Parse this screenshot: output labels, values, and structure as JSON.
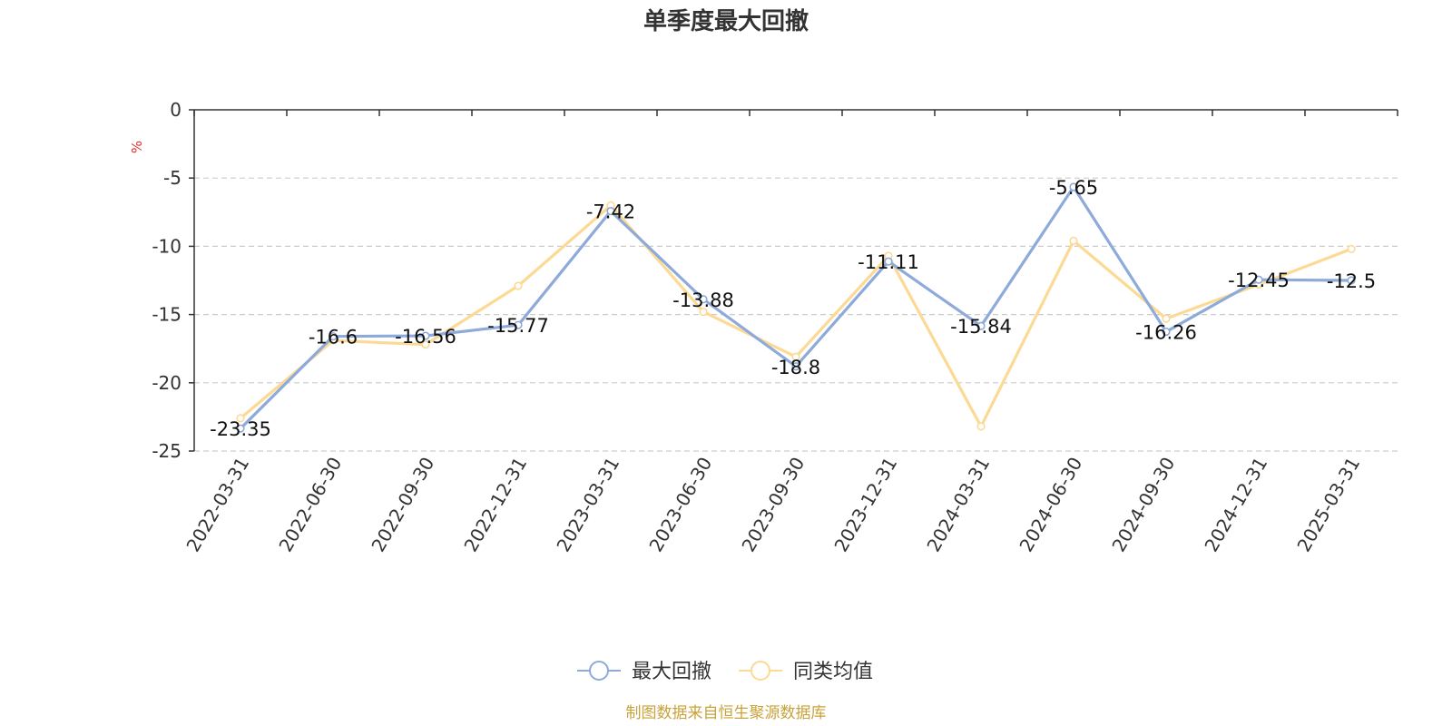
{
  "chart_data": {
    "type": "line",
    "title": "单季度最大回撤",
    "ylabel": "%",
    "xlabel": "",
    "categories": [
      "2022-03-31",
      "2022-06-30",
      "2022-09-30",
      "2022-12-31",
      "2023-03-31",
      "2023-06-30",
      "2023-09-30",
      "2023-12-31",
      "2024-03-31",
      "2024-06-30",
      "2024-09-30",
      "2024-12-31",
      "2025-03-31"
    ],
    "ylim": [
      -25,
      0
    ],
    "yticks": [
      0,
      -5,
      -10,
      -15,
      -20,
      -25
    ],
    "grid": true,
    "legend_position": "bottom",
    "series": [
      {
        "name": "最大回撤",
        "color": "#8eaadb",
        "values": [
          -23.35,
          -16.6,
          -16.56,
          -15.77,
          -7.42,
          -13.88,
          -18.8,
          -11.11,
          -15.84,
          -5.65,
          -16.26,
          -12.45,
          -12.5
        ],
        "labels": [
          "-23.35",
          "-16.6",
          "-16.56",
          "-15.77",
          "-7.42",
          "-13.88",
          "-18.8",
          "-11.11",
          "-15.84",
          "-5.65",
          "-16.26",
          "-12.45",
          "-12.5"
        ]
      },
      {
        "name": "同类均值",
        "color": "#fcd994",
        "values": [
          -22.6,
          -16.9,
          -17.2,
          -12.9,
          -7.0,
          -14.8,
          -18.1,
          -10.7,
          -23.2,
          -9.6,
          -15.3,
          -12.8,
          -10.2
        ]
      }
    ]
  },
  "source": {
    "text": "制图数据来自恒生聚源数据库",
    "color": "#c9a23a"
  },
  "colors": {
    "unit": "#e0302f",
    "axis": "#333333",
    "grid": "#cccccc"
  }
}
